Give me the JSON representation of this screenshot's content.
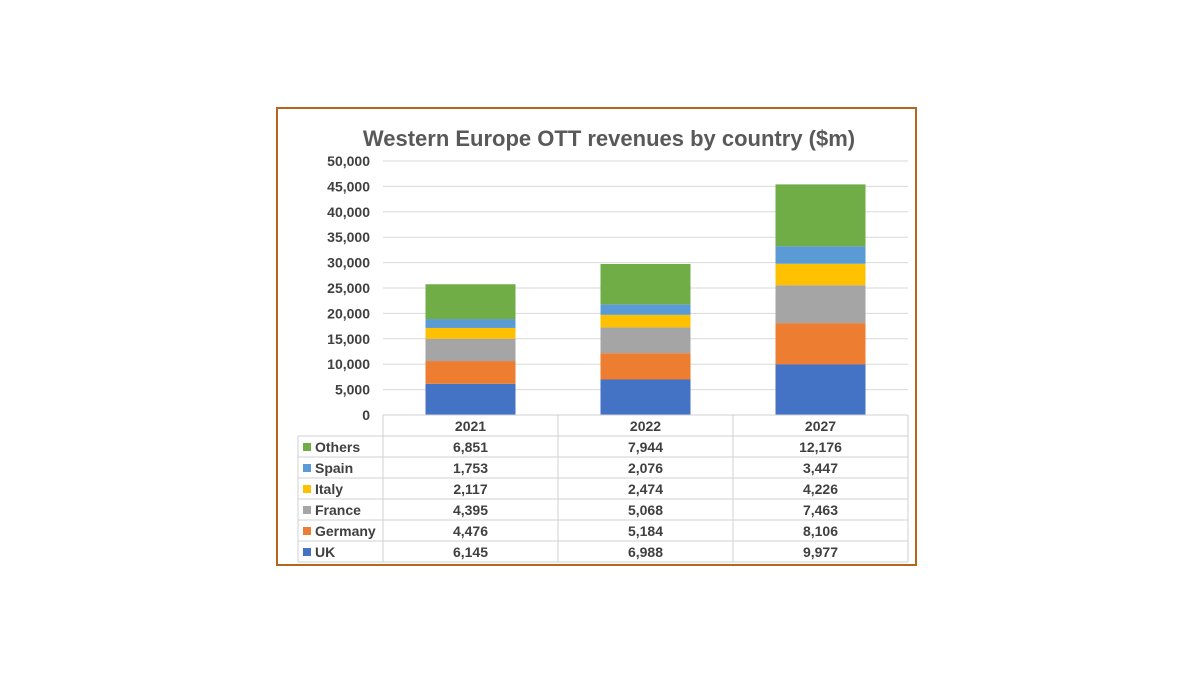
{
  "chart_data": {
    "type": "bar",
    "stacked": true,
    "title": "Western Europe OTT revenues by country ($m)",
    "categories": [
      "2021",
      "2022",
      "2027"
    ],
    "series": [
      {
        "name": "UK",
        "color": "#4472c4",
        "values": [
          6145,
          6988,
          9977
        ],
        "labels": [
          "6,145",
          "6,988",
          "9,977"
        ]
      },
      {
        "name": "Germany",
        "color": "#ed7d31",
        "values": [
          4476,
          5184,
          8106
        ],
        "labels": [
          "4,476",
          "5,184",
          "8,106"
        ]
      },
      {
        "name": "France",
        "color": "#a5a5a5",
        "values": [
          4395,
          5068,
          7463
        ],
        "labels": [
          "4,395",
          "5,068",
          "7,463"
        ]
      },
      {
        "name": "Italy",
        "color": "#ffc000",
        "values": [
          2117,
          2474,
          4226
        ],
        "labels": [
          "2,117",
          "2,474",
          "4,226"
        ]
      },
      {
        "name": "Spain",
        "color": "#5b9bd5",
        "values": [
          1753,
          2076,
          3447
        ],
        "labels": [
          "1,753",
          "2,076",
          "3,447"
        ]
      },
      {
        "name": "Others",
        "color": "#70ad47",
        "values": [
          6851,
          7944,
          12176
        ],
        "labels": [
          "6,851",
          "7,944",
          "12,176"
        ]
      }
    ],
    "ylim": [
      0,
      50000
    ],
    "yticks": [
      0,
      5000,
      10000,
      15000,
      20000,
      25000,
      30000,
      35000,
      40000,
      45000,
      50000
    ],
    "ytick_labels": [
      "0",
      "5,000",
      "10,000",
      "15,000",
      "20,000",
      "25,000",
      "30,000",
      "35,000",
      "40,000",
      "45,000",
      "50,000"
    ],
    "grid": true,
    "legend": "data-table",
    "frame_color": "#b5651d"
  }
}
